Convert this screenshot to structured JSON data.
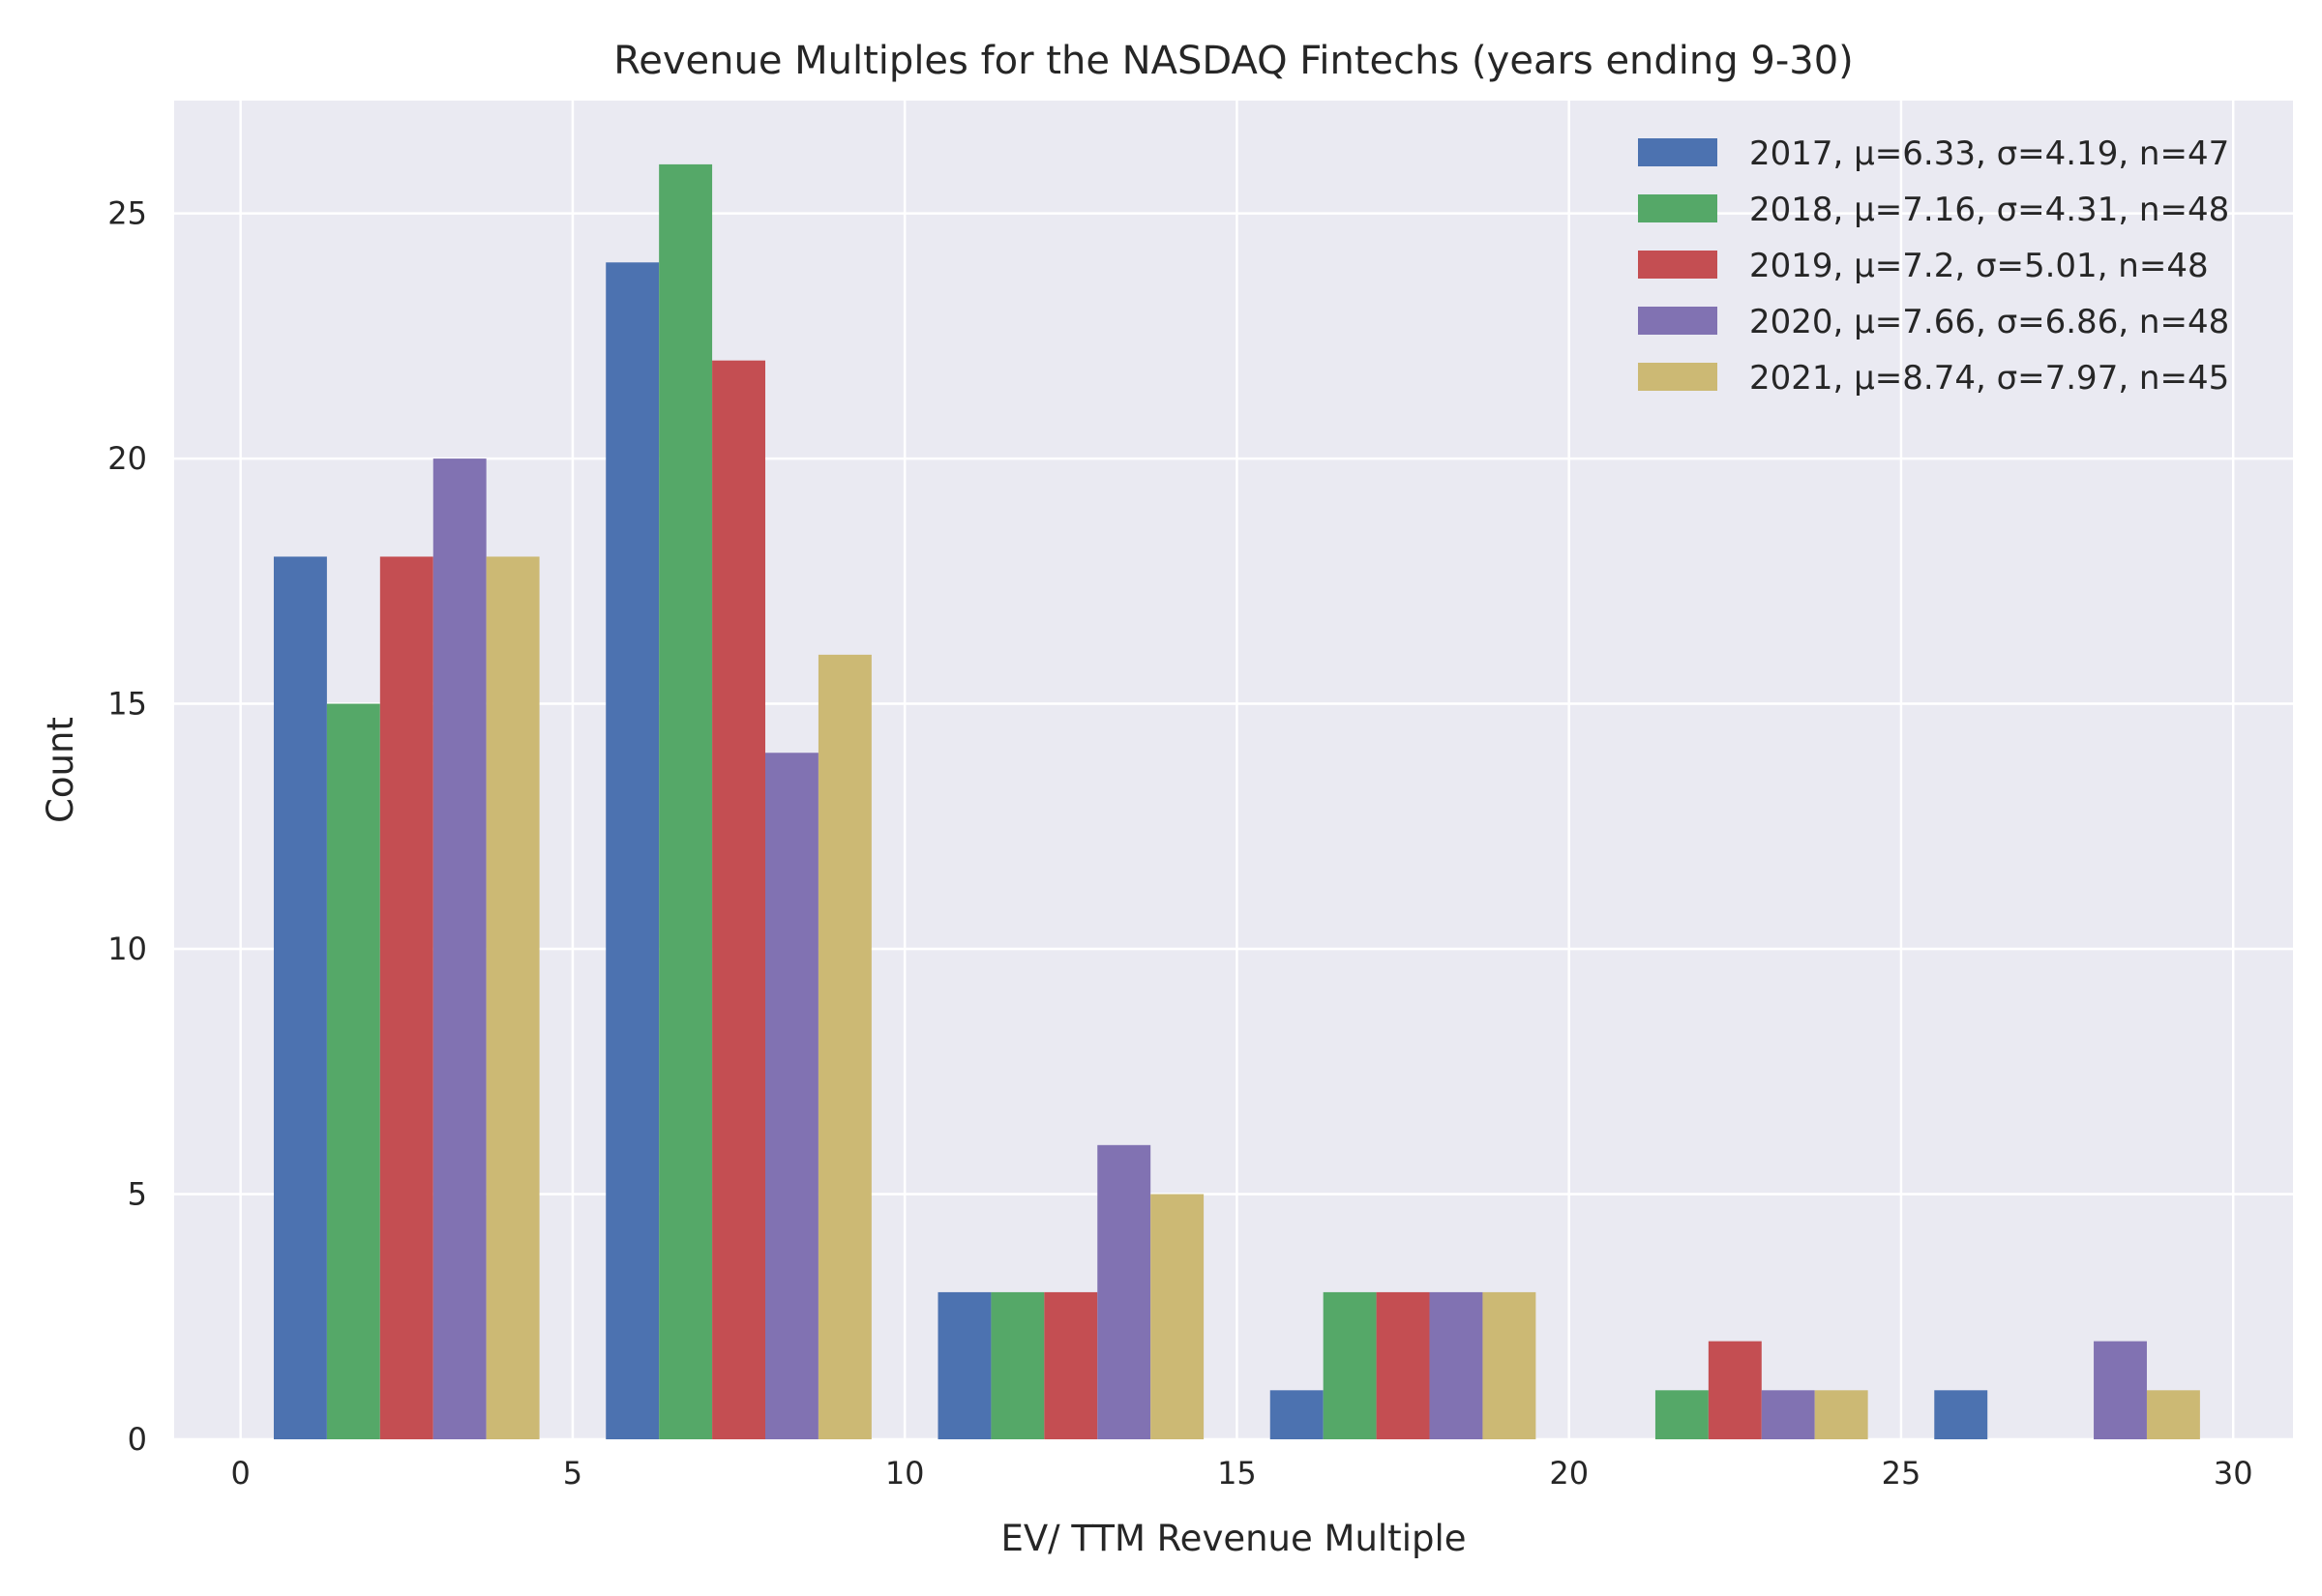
{
  "chart_data": {
    "type": "bar",
    "title": "Revenue Multiples for the NASDAQ Fintechs (years ending 9-30)",
    "xlabel": "EV/ TTM Revenue Multiple",
    "ylabel": "Count",
    "xlim": [
      -1,
      30.9
    ],
    "ylim": [
      0,
      27.3
    ],
    "xticks": [
      0,
      5,
      10,
      15,
      20,
      25,
      30
    ],
    "yticks": [
      0,
      5,
      10,
      15,
      20,
      25
    ],
    "grid": true,
    "legend_position": "top-right",
    "bins": [
      {
        "start": 0.5,
        "end": 4.5
      },
      {
        "start": 5.5,
        "end": 9.5
      },
      {
        "start": 10.5,
        "end": 14.5
      },
      {
        "start": 15.5,
        "end": 19.5
      },
      {
        "start": 20.5,
        "end": 24.5
      },
      {
        "start": 25.5,
        "end": 29.5
      }
    ],
    "series": [
      {
        "name": "2017, μ=6.33, σ=4.19, n=47",
        "color": "#4c72b0",
        "values": [
          18,
          24,
          3,
          1,
          0,
          1
        ]
      },
      {
        "name": "2018, μ=7.16, σ=4.31, n=48",
        "color": "#55a868",
        "values": [
          15,
          26,
          3,
          3,
          1,
          0
        ]
      },
      {
        "name": "2019, μ=7.2, σ=5.01, n=48",
        "color": "#c44e52",
        "values": [
          18,
          22,
          3,
          3,
          2,
          0
        ]
      },
      {
        "name": "2020, μ=7.66, σ=6.86, n=48",
        "color": "#8172b2",
        "values": [
          20,
          14,
          6,
          3,
          1,
          2
        ]
      },
      {
        "name": "2021, μ=8.74, σ=7.97, n=45",
        "color": "#ccb974",
        "values": [
          18,
          16,
          5,
          3,
          1,
          1
        ]
      }
    ]
  }
}
